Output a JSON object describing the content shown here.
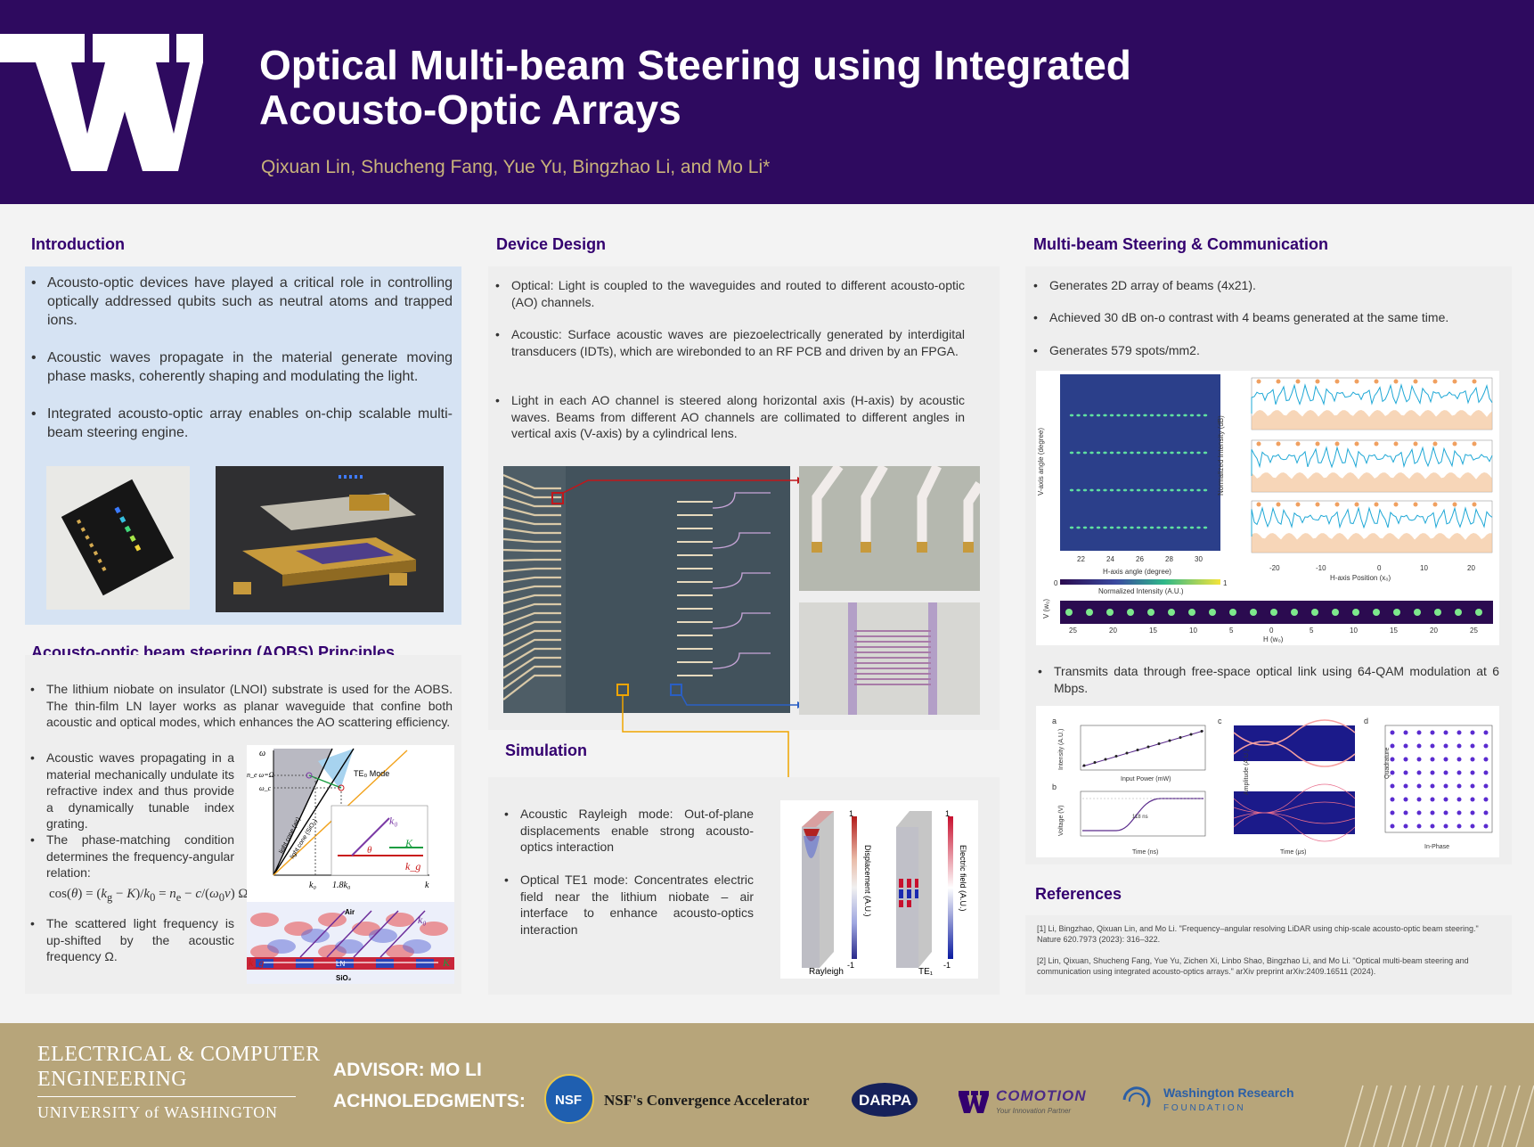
{
  "header": {
    "title_line1": "Optical Multi-beam Steering using Integrated",
    "title_line2": "Acousto-Optic Arrays",
    "authors": "Qixuan Lin, Shucheng Fang, Yue Yu, Bingzhao Li, and Mo Li*"
  },
  "introduction": {
    "title": "Introduction",
    "bullets": [
      "Acousto-optic devices have played a critical role in controlling optically addressed qubits such as neutral atoms and trapped ions.",
      "Acoustic waves propagate in the material generate moving phase masks, coherently shaping and modulating the light.",
      "Integrated acousto-optic array enables on-chip scalable multi-beam steering engine."
    ]
  },
  "aobs": {
    "title": "Acousto-optic beam steering (AOBS) Principles",
    "bullet1": "The lithium niobate on insulator (LNOI) substrate is used for the AOBS. The thin-film LN layer works as planar waveguide that confine both acoustic and optical modes, which enhances the AO scattering efficiency.",
    "bullet2": "Acoustic waves propagating in a material mechanically undulate its refractive index and thus provide a dynamically tunable index grating.",
    "bullet3": "The phase-matching condition determines the frequency-angular relation:",
    "bullet4": "The scattered light frequency is up-shifted by the acoustic frequency Ω.",
    "fig": {
      "omega": "ω",
      "omega_label_1": "n_e ω=Ω",
      "omega_label_2": "ω_c",
      "mode": "TE₀ Mode",
      "k0": "k₀",
      "k0b": "k₀",
      "kg": "k_g",
      "K": "K",
      "theta": "θ",
      "x_k0": "k₀",
      "x_18": "1.8k₀",
      "x_k": "k",
      "air": "Air",
      "ln": "LN",
      "sio2": "SiO₂",
      "lc1": "light cone (air)",
      "lc2": "light cone (SiO₂)"
    }
  },
  "device": {
    "title": "Device Design",
    "bullets": [
      "Optical: Light is coupled to the waveguides and routed to different acousto-optic (AO) channels.",
      "Acoustic: Surface acoustic waves are piezoelectrically generated by interdigital transducers (IDTs), which are wirebonded to an RF PCB and driven by an FPGA.",
      "Light in each AO channel is steered along horizontal axis (H-axis) by acoustic waves. Beams from different AO channels are collimated to different angles in vertical axis (V-axis) by a cylindrical lens."
    ]
  },
  "simulation": {
    "title": "Simulation",
    "bullets": [
      "Acoustic Rayleigh mode: Out-of-plane displacements enable strong acousto-optics interaction",
      "Optical TE1 mode: Concentrates electric field near the lithium niobate – air interface to enhance acousto-optics interaction"
    ],
    "fig": {
      "label_rayleigh": "Rayleigh",
      "label_te": "TE₁",
      "cb1": "Displacement (A.U.)",
      "cb2": "Electric field (A.U.)",
      "one": "1",
      "neg": "-1"
    }
  },
  "multibeam": {
    "title": "Multi-beam Steering & Communication",
    "bullets": [
      "Generates 2D array of beams (4x21).",
      "Achieved 30 dB on-o   contrast with 4 beams generated at the same time.",
      "Generates 579 spots/mm2."
    ],
    "bullet_tx": "Transmits data through free-space optical link using 64-QAM modulation at 6 Mbps.",
    "fig": {
      "v_axis": "V-axis angle (degree)",
      "h_axis": "H-axis angle (degree)",
      "intensity": "Normalized Intensity (A.U.)",
      "norm_db": "Normalized Intensity (dB)",
      "h_pos": "H-axis Position (x₀)",
      "hv_v": "V (w₀)",
      "hv_h": "H (w₀)",
      "hticks": [
        "22",
        "24",
        "26",
        "28",
        "30"
      ],
      "vticks": [
        "-6",
        "-4",
        "-2",
        "0",
        "2",
        "4"
      ],
      "posticks": [
        "-20",
        "-10",
        "0",
        "10",
        "20"
      ],
      "dbticks": [
        "0",
        "-20",
        "-40"
      ],
      "bticks": [
        "25",
        "20",
        "15",
        "10",
        "5",
        "0",
        "5",
        "10",
        "15",
        "20",
        "25"
      ],
      "cb_min": "0",
      "cb_max": "1"
    },
    "fig2": {
      "a": "a",
      "b": "b",
      "c": "c",
      "d": "d",
      "a_x": "Input Power (mW)",
      "a_y": "Intensity (A.U.)",
      "b_x": "Time (ns)",
      "b_y": "Voltage (V)",
      "b_ann": "118 ns",
      "c_x": "Time (μs)",
      "c_y": "Amplitude (A.U.)",
      "d_x": "In-Phase",
      "d_y": "Quadrature",
      "a_ticks": [
        "0",
        "5",
        "10",
        "15",
        "20"
      ],
      "b_ticks": [
        "0",
        "50",
        "100",
        "150",
        "200",
        "250",
        "300",
        "350",
        "400"
      ],
      "c_ticks": [
        "0",
        "0.5",
        "1",
        "1.5"
      ],
      "d_ticks": [
        "-1",
        "-0.5",
        "0",
        "0.5",
        "1"
      ]
    }
  },
  "references": {
    "title": "References",
    "ref1": "[1] Li, Bingzhao, Qixuan Lin, and Mo Li. \"Frequency–angular resolving LiDAR using chip-scale acousto-optic beam steering.\" Nature 620.7973 (2023): 316–322.",
    "ref2": "[2] Lin, Qixuan, Shucheng Fang, Yue Yu, Zichen Xi, Linbo Shao, Bingzhao Li, and Mo Li. \"Optical multi-beam steering and communication using integrated acousto-optics arrays.\" arXiv preprint arXiv:2409.16511 (2024)."
  },
  "footer": {
    "ece_line1": "ELECTRICAL & COMPUTER",
    "ece_line2": "ENGINEERING",
    "uw_line": "UNIVERSITY of WASHINGTON",
    "advisor": "ADVISOR:  MO LI",
    "ack": "ACHNOLEDGMENTS:",
    "nsf_badge": "NSF",
    "nsf": "NSF's Convergence Accelerator",
    "darpa": "DARPA",
    "comotion": "COMOTION",
    "comotion_sub": "Your Innovation Partner",
    "wrf1": "Washington Research",
    "wrf2": "F O U N D A T I O N"
  },
  "colors": {
    "uw_purple": "#2e0a5f",
    "uw_gold": "#b7a57a",
    "section_title": "#33006f",
    "intro_bg": "#d6e3f3",
    "trace_blue": "#1fa8d6",
    "trace_orange": "#f3b27a"
  }
}
